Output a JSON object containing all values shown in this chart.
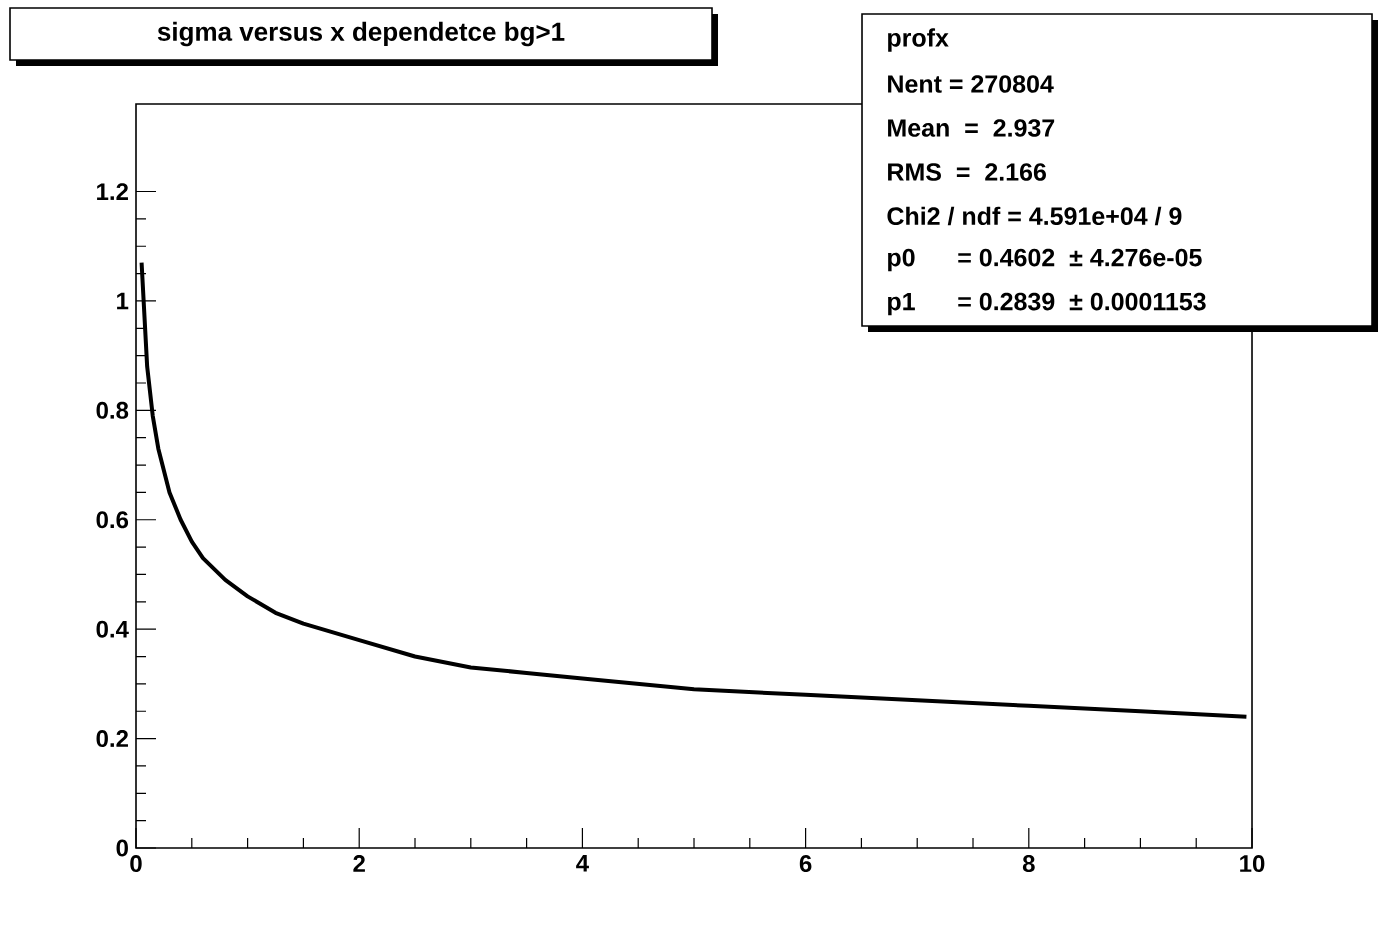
{
  "chart_data": {
    "type": "line",
    "title": "sigma versus x dependetce bg>1",
    "annotations": [
      "profx",
      "Nent = 270804",
      "Mean  =  2.937",
      "RMS   =  2.166",
      "Chi2 / ndf = 4.591e+04 / 9",
      "p0       = 0.4602  ± 4.276e-05",
      "p1       = 0.2839  ± 0.0001153"
    ],
    "x": [
      0.05,
      0.1,
      0.15,
      0.2,
      0.3,
      0.4,
      0.5,
      0.6,
      0.8,
      1,
      1.25,
      1.5,
      2,
      2.5,
      3,
      3.5,
      4,
      5,
      6,
      7,
      8,
      9,
      9.95
    ],
    "series": [
      {
        "color": "#000000",
        "values": [
          1.07,
          0.88,
          0.79,
          0.73,
          0.65,
          0.6,
          0.56,
          0.53,
          0.49,
          0.46,
          0.43,
          0.41,
          0.38,
          0.35,
          0.33,
          0.32,
          0.31,
          0.29,
          0.28,
          0.27,
          0.26,
          0.25,
          0.24
        ]
      }
    ],
    "xlim": [
      0,
      10
    ],
    "ylim": [
      0,
      1.36
    ],
    "xticks": [
      0,
      2,
      4,
      6,
      8,
      10
    ],
    "yticks": [
      0,
      0.2,
      0.4,
      0.6,
      0.8,
      1,
      1.2
    ],
    "marker": "none",
    "line_style": "solid",
    "grid": false
  }
}
